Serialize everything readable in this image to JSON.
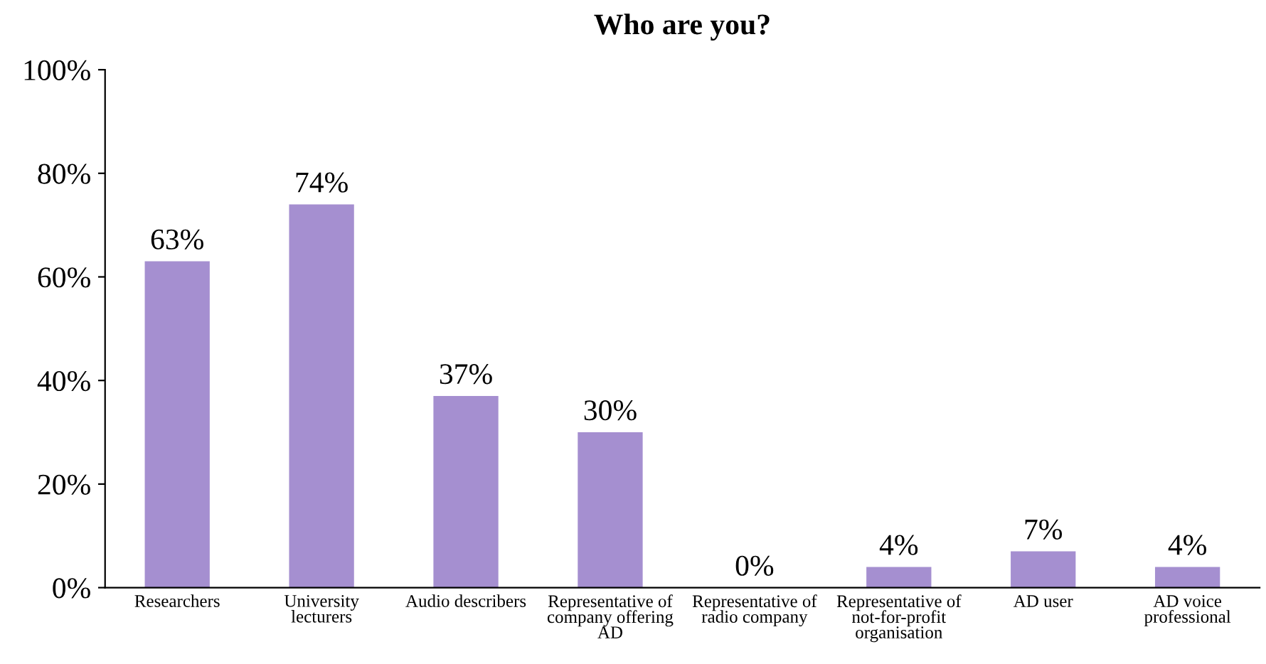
{
  "chart_data": {
    "type": "bar",
    "title": "Who are you?",
    "categories": [
      "Researchers",
      "University\nlecturers",
      "Audio describers",
      "Representative of\ncompany offering\nAD",
      "Representative of\nradio company",
      "Representative of\nnot-for-profit\norganisation",
      "AD user",
      "AD voice\nprofessional"
    ],
    "values": [
      63,
      74,
      37,
      30,
      0,
      4,
      7,
      4
    ],
    "value_labels": [
      "63%",
      "74%",
      "37%",
      "30%",
      "0%",
      "4%",
      "7%",
      "4%"
    ],
    "color": "#a58fd0",
    "ylim": [
      0,
      100
    ],
    "yticks": [
      {
        "value": 0,
        "label": "0%"
      },
      {
        "value": 20,
        "label": "20%"
      },
      {
        "value": 40,
        "label": "40%"
      },
      {
        "value": 60,
        "label": "60%"
      },
      {
        "value": 80,
        "label": "80%"
      },
      {
        "value": 100,
        "label": "100%"
      }
    ],
    "grid": false,
    "legend": false
  }
}
